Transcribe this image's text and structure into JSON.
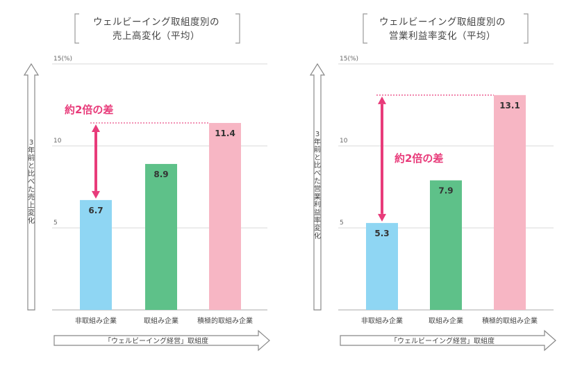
{
  "chart_data": [
    {
      "type": "bar",
      "title_line1": "ウェルビーイング取組度別の",
      "title_line2": "売上高変化（平均）",
      "ylabel": "3年前と比べた売上変化",
      "xlabel": "「ウェルビーイング経営」取組度",
      "ylim": [
        0,
        15
      ],
      "yticks": [
        5,
        10,
        15
      ],
      "ytick_labels": [
        "5",
        "10",
        "15(%)"
      ],
      "categories": [
        "非取組み企業",
        "取組み企業",
        "積極的取組み企業"
      ],
      "values": [
        6.7,
        8.9,
        11.4
      ],
      "value_labels": [
        "6.7",
        "8.9",
        "11.4"
      ],
      "colors": [
        "#8fd6f3",
        "#5ec189",
        "#f7b6c4"
      ],
      "annotation": "約2倍の差",
      "annotation_color": "#e83b7a",
      "grid": true
    },
    {
      "type": "bar",
      "title_line1": "ウェルビーイング取組度別の",
      "title_line2": "営業利益率変化（平均）",
      "ylabel": "3年前と比べた営業利益率変化",
      "xlabel": "「ウェルビーイング経営」取組度",
      "ylim": [
        0,
        15
      ],
      "yticks": [
        5,
        10,
        15
      ],
      "ytick_labels": [
        "5",
        "10",
        "15(%)"
      ],
      "categories": [
        "非取組み企業",
        "取組み企業",
        "積極的取組み企業"
      ],
      "values": [
        5.3,
        7.9,
        13.1
      ],
      "value_labels": [
        "5.3",
        "7.9",
        "13.1"
      ],
      "colors": [
        "#8fd6f3",
        "#5ec189",
        "#f7b6c4"
      ],
      "annotation": "約2倍の差",
      "annotation_color": "#e83b7a",
      "grid": true
    }
  ]
}
